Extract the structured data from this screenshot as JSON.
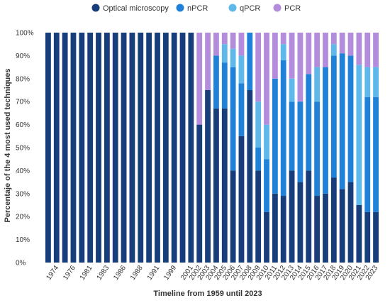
{
  "chart_data": {
    "type": "bar",
    "stacked": true,
    "percent": true,
    "xlabel": "Timeline from 1959 until 2023",
    "ylabel": "Percentaje of the 4 most used techniques",
    "ylim": [
      0,
      100
    ],
    "y_ticks": [
      "0%",
      "10%",
      "20%",
      "30%",
      "40%",
      "50%",
      "60%",
      "70%",
      "80%",
      "90%",
      "100%"
    ],
    "grid": false,
    "legend_position": "top",
    "categories": [
      "",
      "1974",
      "",
      "1976",
      "",
      "1981",
      "",
      "1983",
      "",
      "1986",
      "",
      "1988",
      "",
      "1991",
      "",
      "1999",
      "",
      "2001",
      "2002",
      "2003",
      "2004",
      "2005",
      "2006",
      "2007",
      "2008",
      "2009",
      "2010",
      "2011",
      "2012",
      "2013",
      "2014",
      "2015",
      "2016",
      "2017",
      "2018",
      "2019",
      "2020",
      "2021",
      "2022",
      "2023"
    ],
    "series": [
      {
        "name": "Optical microscopy",
        "color": "#173d7a",
        "values": [
          100,
          100,
          100,
          100,
          100,
          100,
          100,
          100,
          100,
          100,
          100,
          100,
          100,
          100,
          100,
          100,
          100,
          100,
          60,
          75,
          67,
          67,
          40,
          55,
          75,
          40,
          22,
          30,
          29,
          40,
          35,
          40,
          29,
          30,
          37,
          32,
          35,
          25,
          22,
          22
        ]
      },
      {
        "name": "nPCR",
        "color": "#1f82d8",
        "values": [
          0,
          0,
          0,
          0,
          0,
          0,
          0,
          0,
          0,
          0,
          0,
          0,
          0,
          0,
          0,
          0,
          0,
          0,
          0,
          0,
          23,
          20,
          45,
          23,
          25,
          10,
          23,
          50,
          59,
          30,
          35,
          42,
          41,
          55,
          53,
          59,
          55,
          0,
          50,
          50
        ]
      },
      {
        "name": "qPCR",
        "color": "#5fb8ea",
        "values": [
          0,
          0,
          0,
          0,
          0,
          0,
          0,
          0,
          0,
          0,
          0,
          0,
          0,
          0,
          0,
          0,
          0,
          0,
          0,
          0,
          0,
          8,
          8,
          12,
          0,
          20,
          15,
          0,
          7,
          10,
          0,
          0,
          15,
          0,
          5,
          0,
          0,
          61,
          13,
          13
        ]
      },
      {
        "name": "PCR",
        "color": "#b38ddc",
        "values": [
          0,
          0,
          0,
          0,
          0,
          0,
          0,
          0,
          0,
          0,
          0,
          0,
          0,
          0,
          0,
          0,
          0,
          0,
          40,
          25,
          10,
          5,
          7,
          10,
          0,
          30,
          40,
          20,
          5,
          20,
          30,
          18,
          15,
          15,
          5,
          9,
          10,
          14,
          15,
          15
        ]
      }
    ]
  }
}
